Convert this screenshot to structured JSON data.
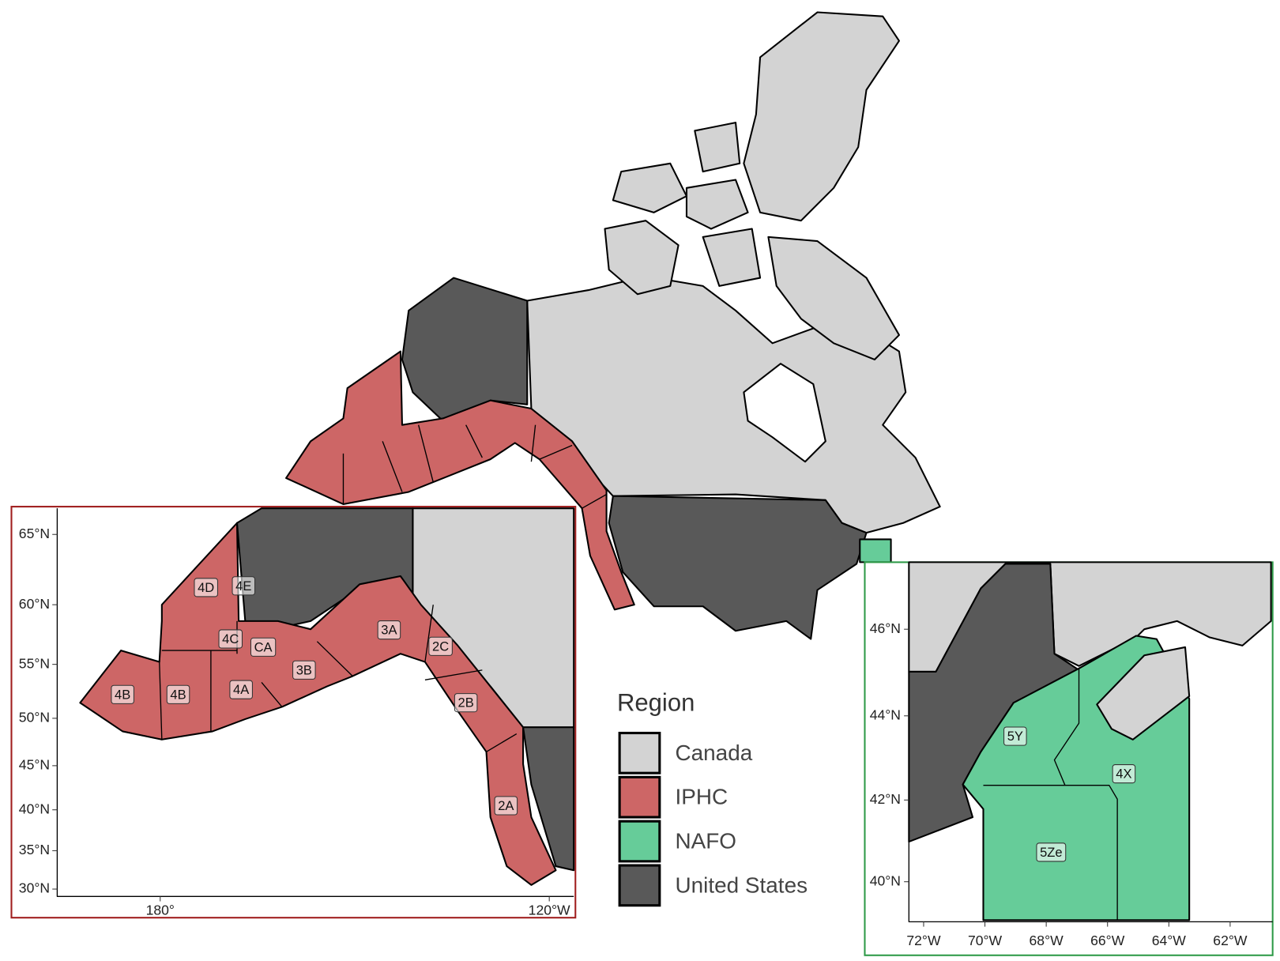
{
  "legend": {
    "title": "Region",
    "items": [
      {
        "name": "Canada",
        "color": "#d3d3d3"
      },
      {
        "name": "IPHC",
        "color": "#cd6666"
      },
      {
        "name": "NAFO",
        "color": "#66cc99"
      },
      {
        "name": "United States",
        "color": "#595959"
      }
    ]
  },
  "pacific_inset": {
    "y_labels": [
      "65°N",
      "60°N",
      "55°N",
      "50°N",
      "45°N",
      "40°N",
      "35°N",
      "30°N"
    ],
    "x_labels": [
      "180°",
      "120°W"
    ],
    "zones": [
      "4B",
      "4B",
      "4D",
      "4E",
      "4C",
      "CA",
      "3B",
      "4A",
      "3A",
      "2C",
      "2B",
      "2A"
    ]
  },
  "atlantic_inset": {
    "y_labels": [
      "46°N",
      "44°N",
      "42°N",
      "40°N"
    ],
    "x_labels": [
      "72°W",
      "70°W",
      "68°W",
      "66°W",
      "64°W",
      "62°W"
    ],
    "zones": [
      "5Y",
      "4X",
      "5Ze"
    ]
  }
}
